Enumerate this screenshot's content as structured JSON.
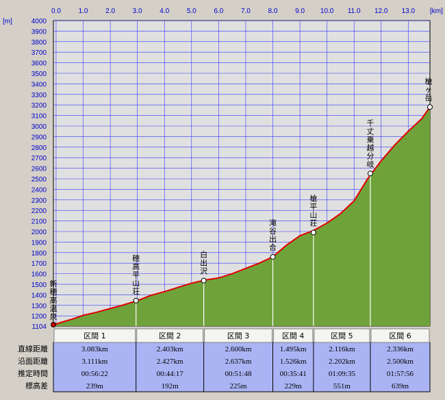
{
  "chart_data": {
    "type": "area",
    "x_unit": "[km]",
    "y_unit": "[m]",
    "x_ticks": [
      0.0,
      1.0,
      2.0,
      3.0,
      4.0,
      5.0,
      6.0,
      7.0,
      8.0,
      9.0,
      10.0,
      11.0,
      12.0,
      13.0
    ],
    "y_ticks": [
      1104,
      1200,
      1300,
      1400,
      1500,
      1600,
      1700,
      1800,
      1900,
      2000,
      2100,
      2200,
      2300,
      2400,
      2500,
      2600,
      2700,
      2800,
      2900,
      3000,
      3100,
      3200,
      3300,
      3400,
      3500,
      3600,
      3700,
      3800,
      3900,
      4000
    ],
    "xlim": [
      -0.1,
      13.8
    ],
    "ylim": [
      1104,
      4000
    ],
    "grid": true,
    "profile": {
      "x": [
        -0.1,
        0.2,
        0.6,
        1.0,
        1.5,
        2.0,
        2.5,
        3.0,
        3.5,
        4.0,
        4.5,
        5.0,
        5.5,
        6.0,
        6.5,
        7.0,
        7.5,
        8.0,
        8.5,
        9.0,
        9.5,
        10.0,
        10.5,
        11.0,
        11.5,
        12.0,
        12.5,
        13.0,
        13.5,
        13.8
      ],
      "y": [
        1115,
        1140,
        1170,
        1205,
        1235,
        1270,
        1305,
        1345,
        1395,
        1430,
        1470,
        1510,
        1540,
        1560,
        1600,
        1650,
        1700,
        1760,
        1870,
        1960,
        2010,
        2080,
        2170,
        2290,
        2500,
        2670,
        2820,
        2950,
        3070,
        3180
      ]
    },
    "waypoints": [
      {
        "name": "新穂高温泉",
        "x": -0.1,
        "y": 1117
      },
      {
        "name": "穂高平山荘",
        "x": 2.95,
        "y": 1345
      },
      {
        "name": "白出沢",
        "x": 5.45,
        "y": 1535
      },
      {
        "name": "滝谷出合",
        "x": 8.0,
        "y": 1760
      },
      {
        "name": "槍平山荘",
        "x": 9.5,
        "y": 1990
      },
      {
        "name": "千丈乗越分岐",
        "x": 11.6,
        "y": 2550
      },
      {
        "name": "槍ヶ岳",
        "x": 13.8,
        "y": 3180
      }
    ]
  },
  "table": {
    "row_headers": [
      "直線距離",
      "沿面距離",
      "推定時間",
      "標高差"
    ],
    "sections": [
      {
        "label": "区間 1",
        "values": [
          "3.083km",
          "3.111km",
          "00:56:22",
          "239m"
        ]
      },
      {
        "label": "区間 2",
        "values": [
          "2.403km",
          "2.427km",
          "00:44:17",
          "192m"
        ]
      },
      {
        "label": "区間 3",
        "values": [
          "2.600km",
          "2.637km",
          "00:51:48",
          "225m"
        ]
      },
      {
        "label": "区間 4",
        "values": [
          "1.495km",
          "1.526km",
          "00:35:41",
          "229m"
        ]
      },
      {
        "label": "区間 5",
        "values": [
          "2.116km",
          "2.202km",
          "01:09:35",
          "551m"
        ]
      },
      {
        "label": "区間 6",
        "values": [
          "2.336km",
          "2.500km",
          "01:57:56",
          "639m"
        ]
      }
    ]
  },
  "colors": {
    "plot_bg": "#e0e0e0",
    "grid": "#3333ff",
    "fill": "#6fa23a",
    "line": "#e00000",
    "axis_text": "#0000cc",
    "table_bg": "#aab4f4",
    "header_bg": "#f4f4f0"
  }
}
